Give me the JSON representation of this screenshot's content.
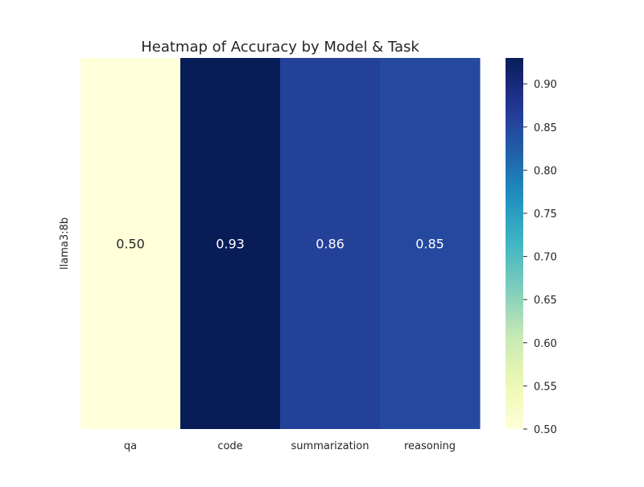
{
  "chart_data": {
    "type": "heatmap",
    "title": "Heatmap of Accuracy by Model & Task",
    "xlabel": "",
    "ylabel": "",
    "rows": [
      "llama3:8b"
    ],
    "columns": [
      "qa",
      "code",
      "summarization",
      "reasoning"
    ],
    "values": [
      [
        0.5,
        0.93,
        0.86,
        0.85
      ]
    ],
    "value_labels": [
      [
        "0.50",
        "0.93",
        "0.86",
        "0.85"
      ]
    ],
    "colormap": "YlGnBu",
    "color_range": [
      0.5,
      0.93
    ],
    "colorbar_ticks": [
      "0.50",
      "0.55",
      "0.60",
      "0.65",
      "0.70",
      "0.75",
      "0.80",
      "0.85",
      "0.90"
    ],
    "colorbar_tick_values": [
      0.5,
      0.55,
      0.6,
      0.65,
      0.7,
      0.75,
      0.8,
      0.85,
      0.9
    ],
    "grid": false,
    "colorbar_position": "right"
  }
}
